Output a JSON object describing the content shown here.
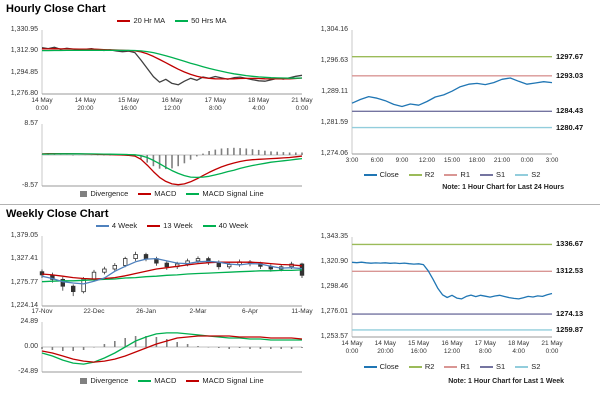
{
  "palette": {
    "close_blue": "#2076B4",
    "ma_red": "#C00000",
    "ma_green": "#00B050",
    "week4_blue": "#4F81BD",
    "r2_green": "#9BBB59",
    "r1_pink": "#D99694",
    "s1_purple": "#7474A0",
    "s2_cyan": "#92CDDC",
    "divergence_gray": "#808080",
    "candle_black": "#333333",
    "axis_text": "#333333",
    "divider": "#B3B3B3"
  },
  "chart_data": [
    {
      "id": "hourly_close",
      "type": "line",
      "title": "Hourly Close Chart",
      "ylim": [
        1276.8,
        1330.95
      ],
      "y_ticks": [
        "1,330.95",
        "1,312.90",
        "1,294.85",
        "1,276.80"
      ],
      "x_labels": [
        [
          "14 May",
          "0:00"
        ],
        [
          "14 May",
          "20:00"
        ],
        [
          "15 May",
          "16:00"
        ],
        [
          "16 May",
          "12:00"
        ],
        [
          "17 May",
          "8:00"
        ],
        [
          "18 May",
          "4:00"
        ],
        [
          "21 May",
          "0:00"
        ]
      ],
      "legend": [
        {
          "label": "20 Hr MA",
          "color": "#C00000"
        },
        {
          "label": "50 Hrs MA",
          "color": "#00B050"
        }
      ],
      "series": [
        {
          "name": "Close",
          "color": "#404040",
          "values": [
            1316,
            1315.2,
            1316.3,
            1314.5,
            1315.5,
            1314.8,
            1313.9,
            1314.6,
            1315.1,
            1314.2,
            1313.6,
            1314.1,
            1313.2,
            1312.6,
            1313.1,
            1311.8,
            1305.5,
            1298.5,
            1291.5,
            1286.8,
            1289.2,
            1285.8,
            1284.6,
            1287.6,
            1290.1,
            1288.4,
            1291.2,
            1290.1,
            1291.6,
            1290.4,
            1289.3,
            1290.6,
            1291.1,
            1290,
            1288.9,
            1288,
            1287.6,
            1288.7,
            1290,
            1289.4,
            1290.6,
            1291.8,
            1292.6
          ]
        },
        {
          "name": "20 Hr MA",
          "color": "#C00000",
          "values": [
            1315,
            1315,
            1315.1,
            1315,
            1315,
            1314.9,
            1314.8,
            1314.7,
            1314.7,
            1314.6,
            1314.4,
            1314.2,
            1314,
            1313.8,
            1313.6,
            1313.3,
            1312.4,
            1310.8,
            1308.6,
            1306,
            1303.3,
            1300.5,
            1297.8,
            1295.4,
            1293.4,
            1291.8,
            1290.7,
            1290,
            1289.7,
            1289.6,
            1289.6,
            1289.7,
            1289.9,
            1290,
            1290,
            1289.9,
            1289.7,
            1289.6,
            1289.6,
            1289.6,
            1289.7,
            1289.9,
            1290.3
          ]
        },
        {
          "name": "50 Hrs MA",
          "color": "#00B050",
          "values": [
            1313.5,
            1313.5,
            1313.6,
            1313.6,
            1313.7,
            1313.7,
            1313.7,
            1313.8,
            1313.8,
            1313.8,
            1313.8,
            1313.8,
            1313.8,
            1313.7,
            1313.7,
            1313.6,
            1313.3,
            1312.7,
            1311.8,
            1310.6,
            1309.2,
            1307.7,
            1306.1,
            1304.5,
            1302.9,
            1301.4,
            1299.9,
            1298.5,
            1297.2,
            1296,
            1294.9,
            1293.9,
            1293.1,
            1292.4,
            1291.8,
            1291.3,
            1290.9,
            1290.6,
            1290.4,
            1290.3,
            1290.2,
            1290.2,
            1290.3
          ]
        }
      ]
    },
    {
      "id": "hourly_macd",
      "type": "macd",
      "ylim": [
        -8.57,
        8.57
      ],
      "y_ticks": [
        "8.57",
        "-8.57"
      ],
      "legend": [
        {
          "label": "Divergence",
          "color": "#808080",
          "type": "bar"
        },
        {
          "label": "MACD",
          "color": "#C00000"
        },
        {
          "label": "MACD Signal Line",
          "color": "#00B050"
        }
      ],
      "bars": {
        "name": "Divergence",
        "color": "#808080",
        "values": [
          0.05,
          0.07,
          0.1,
          0.06,
          0.03,
          0,
          -0.02,
          -0.03,
          -0.05,
          -0.08,
          -0.11,
          -0.13,
          -0.15,
          -0.17,
          -0.22,
          -0.35,
          -1,
          -2.1,
          -3.1,
          -3.8,
          -3.9,
          -3.7,
          -3.1,
          -2.3,
          -1.3,
          -0.4,
          0.4,
          1.1,
          1.5,
          1.8,
          1.9,
          2,
          1.9,
          1.8,
          1.6,
          1.4,
          1.2,
          1,
          0.9,
          0.8,
          0.7,
          0.7,
          0.7
        ]
      },
      "series": [
        {
          "name": "MACD",
          "color": "#C00000",
          "values": [
            0.3,
            0.35,
            0.4,
            0.38,
            0.36,
            0.33,
            0.3,
            0.28,
            0.25,
            0.2,
            0.15,
            0.1,
            0.05,
            0,
            -0.1,
            -0.3,
            -1.2,
            -2.8,
            -4.6,
            -6.2,
            -7.3,
            -8,
            -8.2,
            -8,
            -7.4,
            -6.6,
            -5.7,
            -4.8,
            -4,
            -3.3,
            -2.7,
            -2.2,
            -1.8,
            -1.5,
            -1.3,
            -1.2,
            -1.1,
            -1,
            -0.9,
            -0.8,
            -0.7,
            -0.5,
            -0.3
          ]
        },
        {
          "name": "MACD Signal Line",
          "color": "#00B050",
          "values": [
            0.25,
            0.28,
            0.3,
            0.32,
            0.33,
            0.33,
            0.32,
            0.31,
            0.3,
            0.28,
            0.26,
            0.23,
            0.2,
            0.17,
            0.12,
            0.05,
            -0.2,
            -0.7,
            -1.5,
            -2.4,
            -3.4,
            -4.3,
            -5.1,
            -5.7,
            -6.1,
            -6.2,
            -6.1,
            -5.9,
            -5.5,
            -5.1,
            -4.6,
            -4.2,
            -3.7,
            -3.3,
            -2.9,
            -2.6,
            -2.3,
            -2,
            -1.8,
            -1.6,
            -1.4,
            -1.2,
            -1
          ]
        }
      ]
    },
    {
      "id": "hourly_sr",
      "type": "line",
      "note": "Note: 1 Hour Chart for Last 24 Hours",
      "ylim": [
        1274.06,
        1304.16
      ],
      "y_ticks": [
        "1,304.16",
        "1,296.63",
        "1,289.11",
        "1,281.59",
        "1,274.06"
      ],
      "x_labels": [
        "3:00",
        "6:00",
        "9:00",
        "12:00",
        "15:00",
        "18:00",
        "21:00",
        "0:00",
        "3:00"
      ],
      "legend": [
        {
          "label": "Close",
          "color": "#2076B4"
        },
        {
          "label": "R2",
          "color": "#9BBB59"
        },
        {
          "label": "R1",
          "color": "#D99694"
        },
        {
          "label": "S1",
          "color": "#7474A0"
        },
        {
          "label": "S2",
          "color": "#92CDDC"
        }
      ],
      "levels": [
        {
          "name": "R2",
          "value": 1297.67,
          "label": "1297.67",
          "color": "#9BBB59"
        },
        {
          "name": "R1",
          "value": 1293.03,
          "label": "1293.03",
          "color": "#D99694"
        },
        {
          "name": "S1",
          "value": 1284.43,
          "label": "1284.43",
          "color": "#7474A0"
        },
        {
          "name": "S2",
          "value": 1280.47,
          "label": "1280.47",
          "color": "#92CDDC"
        }
      ],
      "series": [
        {
          "name": "Close",
          "color": "#2076B4",
          "values": [
            1286.4,
            1287.3,
            1288,
            1287.6,
            1287,
            1286.1,
            1285.6,
            1286.2,
            1285.9,
            1286.8,
            1287.9,
            1288.4,
            1289.3,
            1290.4,
            1291,
            1291.2,
            1290.9,
            1291.4,
            1292.2,
            1292.5,
            1291.7,
            1291,
            1291.3,
            1291.6,
            1291.4
          ]
        }
      ]
    },
    {
      "id": "weekly_close",
      "type": "candlestick",
      "title": "Weekly Close Chart",
      "ylim": [
        1224.14,
        1379.05
      ],
      "y_ticks": [
        "1,379.05",
        "1,327.41",
        "1,275.77",
        "1,224.14"
      ],
      "x_labels": [
        "17-Nov",
        "22-Dec",
        "26-Jan",
        "2-Mar",
        "6-Apr",
        "11-May"
      ],
      "legend": [
        {
          "label": "4 Week",
          "color": "#4F81BD"
        },
        {
          "label": "13 Week",
          "color": "#C00000"
        },
        {
          "label": "40 Week",
          "color": "#00B050"
        }
      ],
      "candles": [
        [
          1300,
          1305,
          1286,
          1293
        ],
        [
          1293,
          1298,
          1276,
          1283
        ],
        [
          1283,
          1288,
          1258,
          1268
        ],
        [
          1268,
          1272,
          1246,
          1256
        ],
        [
          1256,
          1288,
          1252,
          1284
        ],
        [
          1284,
          1304,
          1280,
          1299
        ],
        [
          1299,
          1311,
          1294,
          1306
        ],
        [
          1306,
          1319,
          1301,
          1314
        ],
        [
          1314,
          1333,
          1310,
          1329
        ],
        [
          1329,
          1344,
          1324,
          1338
        ],
        [
          1338,
          1342,
          1323,
          1329
        ],
        [
          1329,
          1333,
          1313,
          1319
        ],
        [
          1319,
          1323,
          1304,
          1311
        ],
        [
          1311,
          1322,
          1306,
          1317
        ],
        [
          1317,
          1329,
          1312,
          1324
        ],
        [
          1324,
          1334,
          1319,
          1329
        ],
        [
          1329,
          1333,
          1315,
          1321
        ],
        [
          1321,
          1325,
          1305,
          1311
        ],
        [
          1311,
          1321,
          1306,
          1316
        ],
        [
          1316,
          1327,
          1311,
          1322
        ],
        [
          1322,
          1326,
          1312,
          1318
        ],
        [
          1318,
          1322,
          1306,
          1312
        ],
        [
          1312,
          1316,
          1300,
          1306
        ],
        [
          1306,
          1316,
          1301,
          1311
        ],
        [
          1311,
          1322,
          1306,
          1317
        ],
        [
          1317,
          1320,
          1286,
          1292
        ]
      ],
      "series": [
        {
          "name": "40 Week",
          "color": "#00B050",
          "values": [
            1278,
            1279,
            1280,
            1280,
            1281,
            1282,
            1283,
            1284,
            1286,
            1287,
            1289,
            1290,
            1292,
            1293,
            1295,
            1296,
            1297,
            1298,
            1299,
            1300,
            1301,
            1302,
            1302,
            1303,
            1303,
            1304
          ]
        },
        {
          "name": "13 Week",
          "color": "#C00000",
          "values": [
            1295,
            1293,
            1290,
            1287,
            1285,
            1284,
            1285,
            1287,
            1291,
            1296,
            1301,
            1306,
            1309,
            1312,
            1315,
            1318,
            1320,
            1321,
            1321,
            1321,
            1321,
            1320,
            1318,
            1316,
            1315,
            1313
          ]
        },
        {
          "name": "4 Week",
          "color": "#4F81BD",
          "values": [
            1290,
            1285,
            1278,
            1275,
            1273,
            1279,
            1286,
            1301,
            1312,
            1322,
            1328,
            1329,
            1324,
            1319,
            1318,
            1322,
            1323,
            1321,
            1317,
            1315,
            1318,
            1317,
            1312,
            1308,
            1309,
            1307
          ]
        }
      ]
    },
    {
      "id": "weekly_macd",
      "type": "macd",
      "ylim": [
        -24.89,
        24.89
      ],
      "y_ticks": [
        "24.89",
        "0.00",
        "-24.89"
      ],
      "legend": [
        {
          "label": "Divergence",
          "color": "#808080",
          "type": "bar"
        },
        {
          "label": "MACD",
          "color": "#00B050"
        },
        {
          "label": "MACD Signal Line",
          "color": "#C00000"
        }
      ],
      "bars": {
        "name": "Divergence",
        "color": "#808080",
        "values": [
          -2,
          -3,
          -4,
          -4,
          -3,
          0,
          3,
          6,
          9,
          11,
          11,
          10,
          8,
          5,
          3,
          1,
          0,
          -1,
          -2,
          -1,
          -2,
          -2,
          -2,
          -2,
          -2,
          -1
        ]
      },
      "series": [
        {
          "name": "MACD",
          "color": "#00B050",
          "values": [
            -6,
            -9,
            -13,
            -16,
            -17,
            -15,
            -11,
            -6,
            0,
            6,
            10,
            13,
            14,
            14,
            13,
            12,
            11,
            10,
            9,
            9,
            8,
            8,
            7,
            7,
            7,
            7
          ]
        },
        {
          "name": "MACD Signal Line",
          "color": "#C00000",
          "values": [
            -4,
            -6,
            -9,
            -12,
            -14,
            -15,
            -14,
            -12,
            -9,
            -5,
            -1,
            3,
            6,
            9,
            10,
            11,
            11,
            11,
            11,
            10,
            10,
            10,
            9,
            9,
            9,
            8
          ]
        }
      ]
    },
    {
      "id": "weekly_sr",
      "type": "line",
      "note": "Note: 1 Hour Chart for Last 1 Week",
      "ylim": [
        1253.57,
        1343.35
      ],
      "y_ticks": [
        "1,343.35",
        "1,320.90",
        "1,298.46",
        "1,276.01",
        "1,253.57"
      ],
      "x_labels": [
        [
          "14 May",
          "0:00"
        ],
        [
          "14 May",
          "20:00"
        ],
        [
          "15 May",
          "16:00"
        ],
        [
          "16 May",
          "12:00"
        ],
        [
          "17 May",
          "8:00"
        ],
        [
          "18 May",
          "4:00"
        ],
        [
          "21 May",
          "0:00"
        ]
      ],
      "legend": [
        {
          "label": "Close",
          "color": "#2076B4"
        },
        {
          "label": "R2",
          "color": "#9BBB59"
        },
        {
          "label": "R1",
          "color": "#D99694"
        },
        {
          "label": "S1",
          "color": "#7474A0"
        },
        {
          "label": "S2",
          "color": "#92CDDC"
        }
      ],
      "levels": [
        {
          "name": "R2",
          "value": 1336.67,
          "label": "1336.67",
          "color": "#9BBB59"
        },
        {
          "name": "R1",
          "value": 1312.53,
          "label": "1312.53",
          "color": "#D99694"
        },
        {
          "name": "S1",
          "value": 1274.13,
          "label": "1274.13",
          "color": "#7474A0"
        },
        {
          "name": "S2",
          "value": 1259.87,
          "label": "1259.87",
          "color": "#92CDDC"
        }
      ],
      "series": [
        {
          "name": "Close",
          "color": "#2076B4",
          "values": [
            1320.6,
            1320.3,
            1320.7,
            1320.2,
            1319.8,
            1320.1,
            1319.9,
            1320.2,
            1319.7,
            1320,
            1319.6,
            1319.9,
            1319.4,
            1319,
            1319.3,
            1318.6,
            1313,
            1305.5,
            1297.5,
            1291.5,
            1289,
            1291,
            1288.5,
            1287.8,
            1290,
            1291.2,
            1289.8,
            1291,
            1290.2,
            1289.4,
            1290.4,
            1291,
            1289.9,
            1288.9,
            1288.2,
            1287.8,
            1288.8,
            1290,
            1289.5,
            1290.5,
            1290,
            1291.5,
            1292.6
          ]
        }
      ]
    }
  ]
}
